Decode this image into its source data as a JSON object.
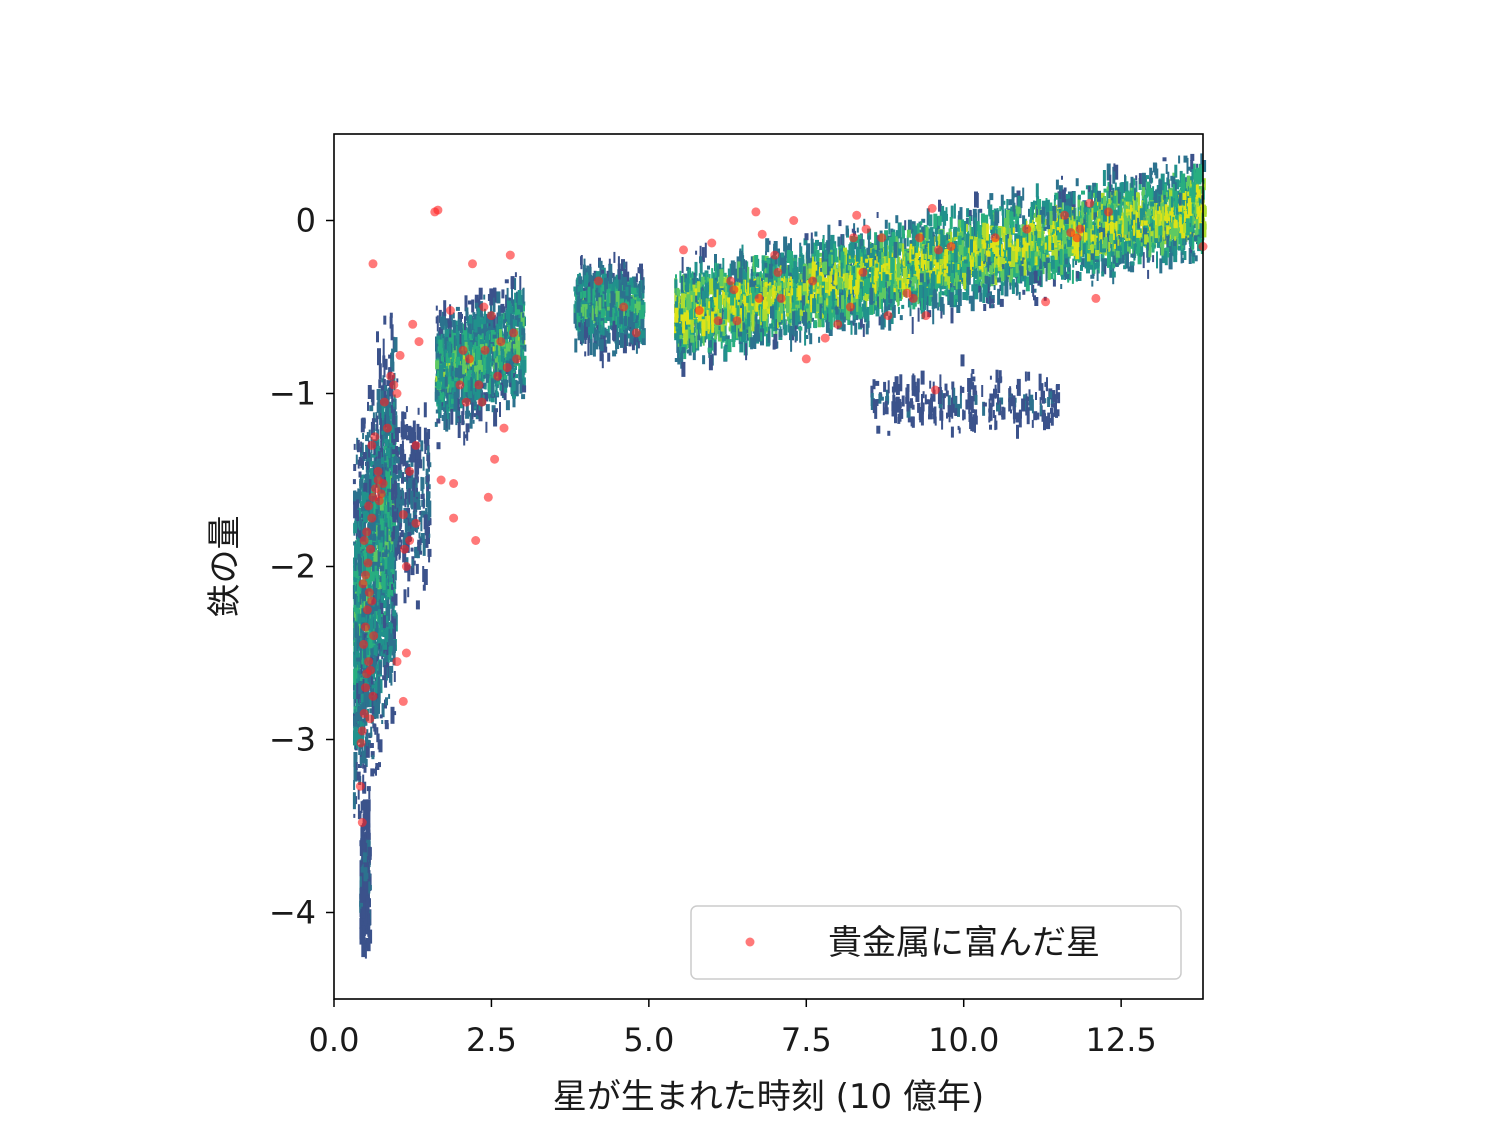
{
  "chart_data": {
    "type": "scatter",
    "title": "",
    "xlabel": "星が生まれた時刻 (10 億年)",
    "ylabel": "鉄の量",
    "xlim": [
      0,
      13.8
    ],
    "ylim": [
      -4.5,
      0.5
    ],
    "x_ticks": [
      0,
      2.5,
      5,
      7.5,
      10,
      12.5
    ],
    "x_tick_labels": [
      "0.0",
      "2.5",
      "5.0",
      "7.5",
      "10.0",
      "12.5"
    ],
    "y_ticks": [
      0,
      -1,
      -2,
      -3,
      -4
    ],
    "y_tick_labels": [
      "0",
      "−1",
      "−2",
      "−3",
      "−4"
    ],
    "grid": false,
    "legend": {
      "location": "lower-right",
      "entries": [
        "貴金属に富んだ星"
      ]
    },
    "background_density": {
      "type": "heatmap",
      "colormap": "viridis",
      "description_regions": [
        {
          "x_range": [
            0.3,
            1.0
          ],
          "y_range": [
            -4.5,
            -1.2
          ]
        },
        {
          "x_range": [
            1.5,
            3.0
          ],
          "y_range": [
            -1.4,
            -0.3
          ]
        },
        {
          "x_range": [
            3.8,
            4.9
          ],
          "y_range": [
            -1.0,
            -0.1
          ]
        },
        {
          "x_range": [
            5.4,
            13.8
          ],
          "y_range": [
            -1.0,
            0.3
          ]
        }
      ]
    },
    "series": [
      {
        "name": "貴金属に富んだ星",
        "color": "#ff2020",
        "points": [
          [
            0.45,
            -3.48
          ],
          [
            0.42,
            -3.27
          ],
          [
            0.43,
            -3.02
          ],
          [
            0.45,
            -2.95
          ],
          [
            0.48,
            -2.85
          ],
          [
            0.5,
            -2.7
          ],
          [
            0.52,
            -2.62
          ],
          [
            0.55,
            -2.55
          ],
          [
            0.47,
            -2.45
          ],
          [
            0.5,
            -2.35
          ],
          [
            0.53,
            -2.25
          ],
          [
            0.56,
            -2.15
          ],
          [
            0.46,
            -2.1
          ],
          [
            0.5,
            -2.05
          ],
          [
            0.54,
            -1.98
          ],
          [
            0.58,
            -1.9
          ],
          [
            0.48,
            -1.85
          ],
          [
            0.52,
            -1.8
          ],
          [
            0.6,
            -1.72
          ],
          [
            0.55,
            -1.65
          ],
          [
            0.62,
            -1.6
          ],
          [
            0.66,
            -1.55
          ],
          [
            0.7,
            -1.5
          ],
          [
            0.75,
            -1.58
          ],
          [
            0.72,
            -1.62
          ],
          [
            0.6,
            -2.2
          ],
          [
            0.63,
            -2.4
          ],
          [
            0.58,
            -2.6
          ],
          [
            0.62,
            -2.75
          ],
          [
            0.57,
            -2.88
          ],
          [
            0.65,
            -1.25
          ],
          [
            0.6,
            -1.3
          ],
          [
            0.62,
            -0.25
          ],
          [
            0.7,
            -1.45
          ],
          [
            0.78,
            -1.52
          ],
          [
            0.8,
            -1.05
          ],
          [
            0.85,
            -1.2
          ],
          [
            0.9,
            -0.9
          ],
          [
            0.95,
            -0.95
          ],
          [
            1.0,
            -1.0
          ],
          [
            1.05,
            -0.78
          ],
          [
            1.1,
            -1.7
          ],
          [
            1.12,
            -1.9
          ],
          [
            1.15,
            -2.0
          ],
          [
            1.2,
            -1.85
          ],
          [
            1.0,
            -2.55
          ],
          [
            1.1,
            -2.78
          ],
          [
            1.15,
            -2.5
          ],
          [
            1.2,
            -1.45
          ],
          [
            1.3,
            -1.3
          ],
          [
            1.25,
            -0.6
          ],
          [
            1.35,
            -0.7
          ],
          [
            1.3,
            -1.75
          ],
          [
            1.6,
            0.05
          ],
          [
            1.65,
            0.06
          ],
          [
            1.7,
            -1.5
          ],
          [
            1.85,
            -0.52
          ],
          [
            1.9,
            -1.52
          ],
          [
            1.9,
            -1.72
          ],
          [
            2.0,
            -0.95
          ],
          [
            2.05,
            -0.75
          ],
          [
            2.1,
            -1.05
          ],
          [
            2.15,
            -0.8
          ],
          [
            2.2,
            -0.25
          ],
          [
            2.25,
            -1.85
          ],
          [
            2.3,
            -0.95
          ],
          [
            2.35,
            -1.05
          ],
          [
            2.38,
            -0.5
          ],
          [
            2.4,
            -0.75
          ],
          [
            2.45,
            -1.6
          ],
          [
            2.5,
            -0.55
          ],
          [
            2.55,
            -1.38
          ],
          [
            2.6,
            -0.9
          ],
          [
            2.65,
            -0.7
          ],
          [
            2.7,
            -1.2
          ],
          [
            2.75,
            -0.85
          ],
          [
            2.8,
            -0.2
          ],
          [
            2.85,
            -0.65
          ],
          [
            2.9,
            -0.8
          ],
          [
            4.2,
            -0.35
          ],
          [
            4.6,
            -0.5
          ],
          [
            4.8,
            -0.65
          ],
          [
            5.55,
            -0.17
          ],
          [
            5.8,
            -0.52
          ],
          [
            6.0,
            -0.13
          ],
          [
            6.1,
            -0.58
          ],
          [
            6.3,
            -0.35
          ],
          [
            6.35,
            -0.4
          ],
          [
            6.4,
            -0.58
          ],
          [
            6.7,
            0.05
          ],
          [
            6.75,
            -0.45
          ],
          [
            6.8,
            -0.08
          ],
          [
            7.0,
            -0.2
          ],
          [
            7.05,
            -0.3
          ],
          [
            7.1,
            -0.45
          ],
          [
            7.3,
            0.0
          ],
          [
            7.5,
            -0.8
          ],
          [
            7.6,
            -0.35
          ],
          [
            7.8,
            -0.68
          ],
          [
            8.0,
            -0.6
          ],
          [
            8.2,
            -0.5
          ],
          [
            8.25,
            -0.1
          ],
          [
            8.3,
            0.03
          ],
          [
            8.4,
            -0.3
          ],
          [
            8.45,
            -0.05
          ],
          [
            8.7,
            -0.1
          ],
          [
            8.8,
            -0.55
          ],
          [
            9.1,
            -0.42
          ],
          [
            9.2,
            -0.45
          ],
          [
            9.3,
            -0.1
          ],
          [
            9.4,
            -0.55
          ],
          [
            9.5,
            0.07
          ],
          [
            9.55,
            -0.98
          ],
          [
            9.6,
            -0.17
          ],
          [
            9.8,
            -0.15
          ],
          [
            10.5,
            -0.1
          ],
          [
            11.0,
            -0.05
          ],
          [
            11.3,
            -0.47
          ],
          [
            11.6,
            0.03
          ],
          [
            11.7,
            -0.07
          ],
          [
            11.8,
            -0.1
          ],
          [
            11.85,
            -0.05
          ],
          [
            12.0,
            0.1
          ],
          [
            12.1,
            -0.45
          ],
          [
            12.3,
            0.05
          ],
          [
            13.8,
            -0.15
          ]
        ]
      }
    ]
  }
}
